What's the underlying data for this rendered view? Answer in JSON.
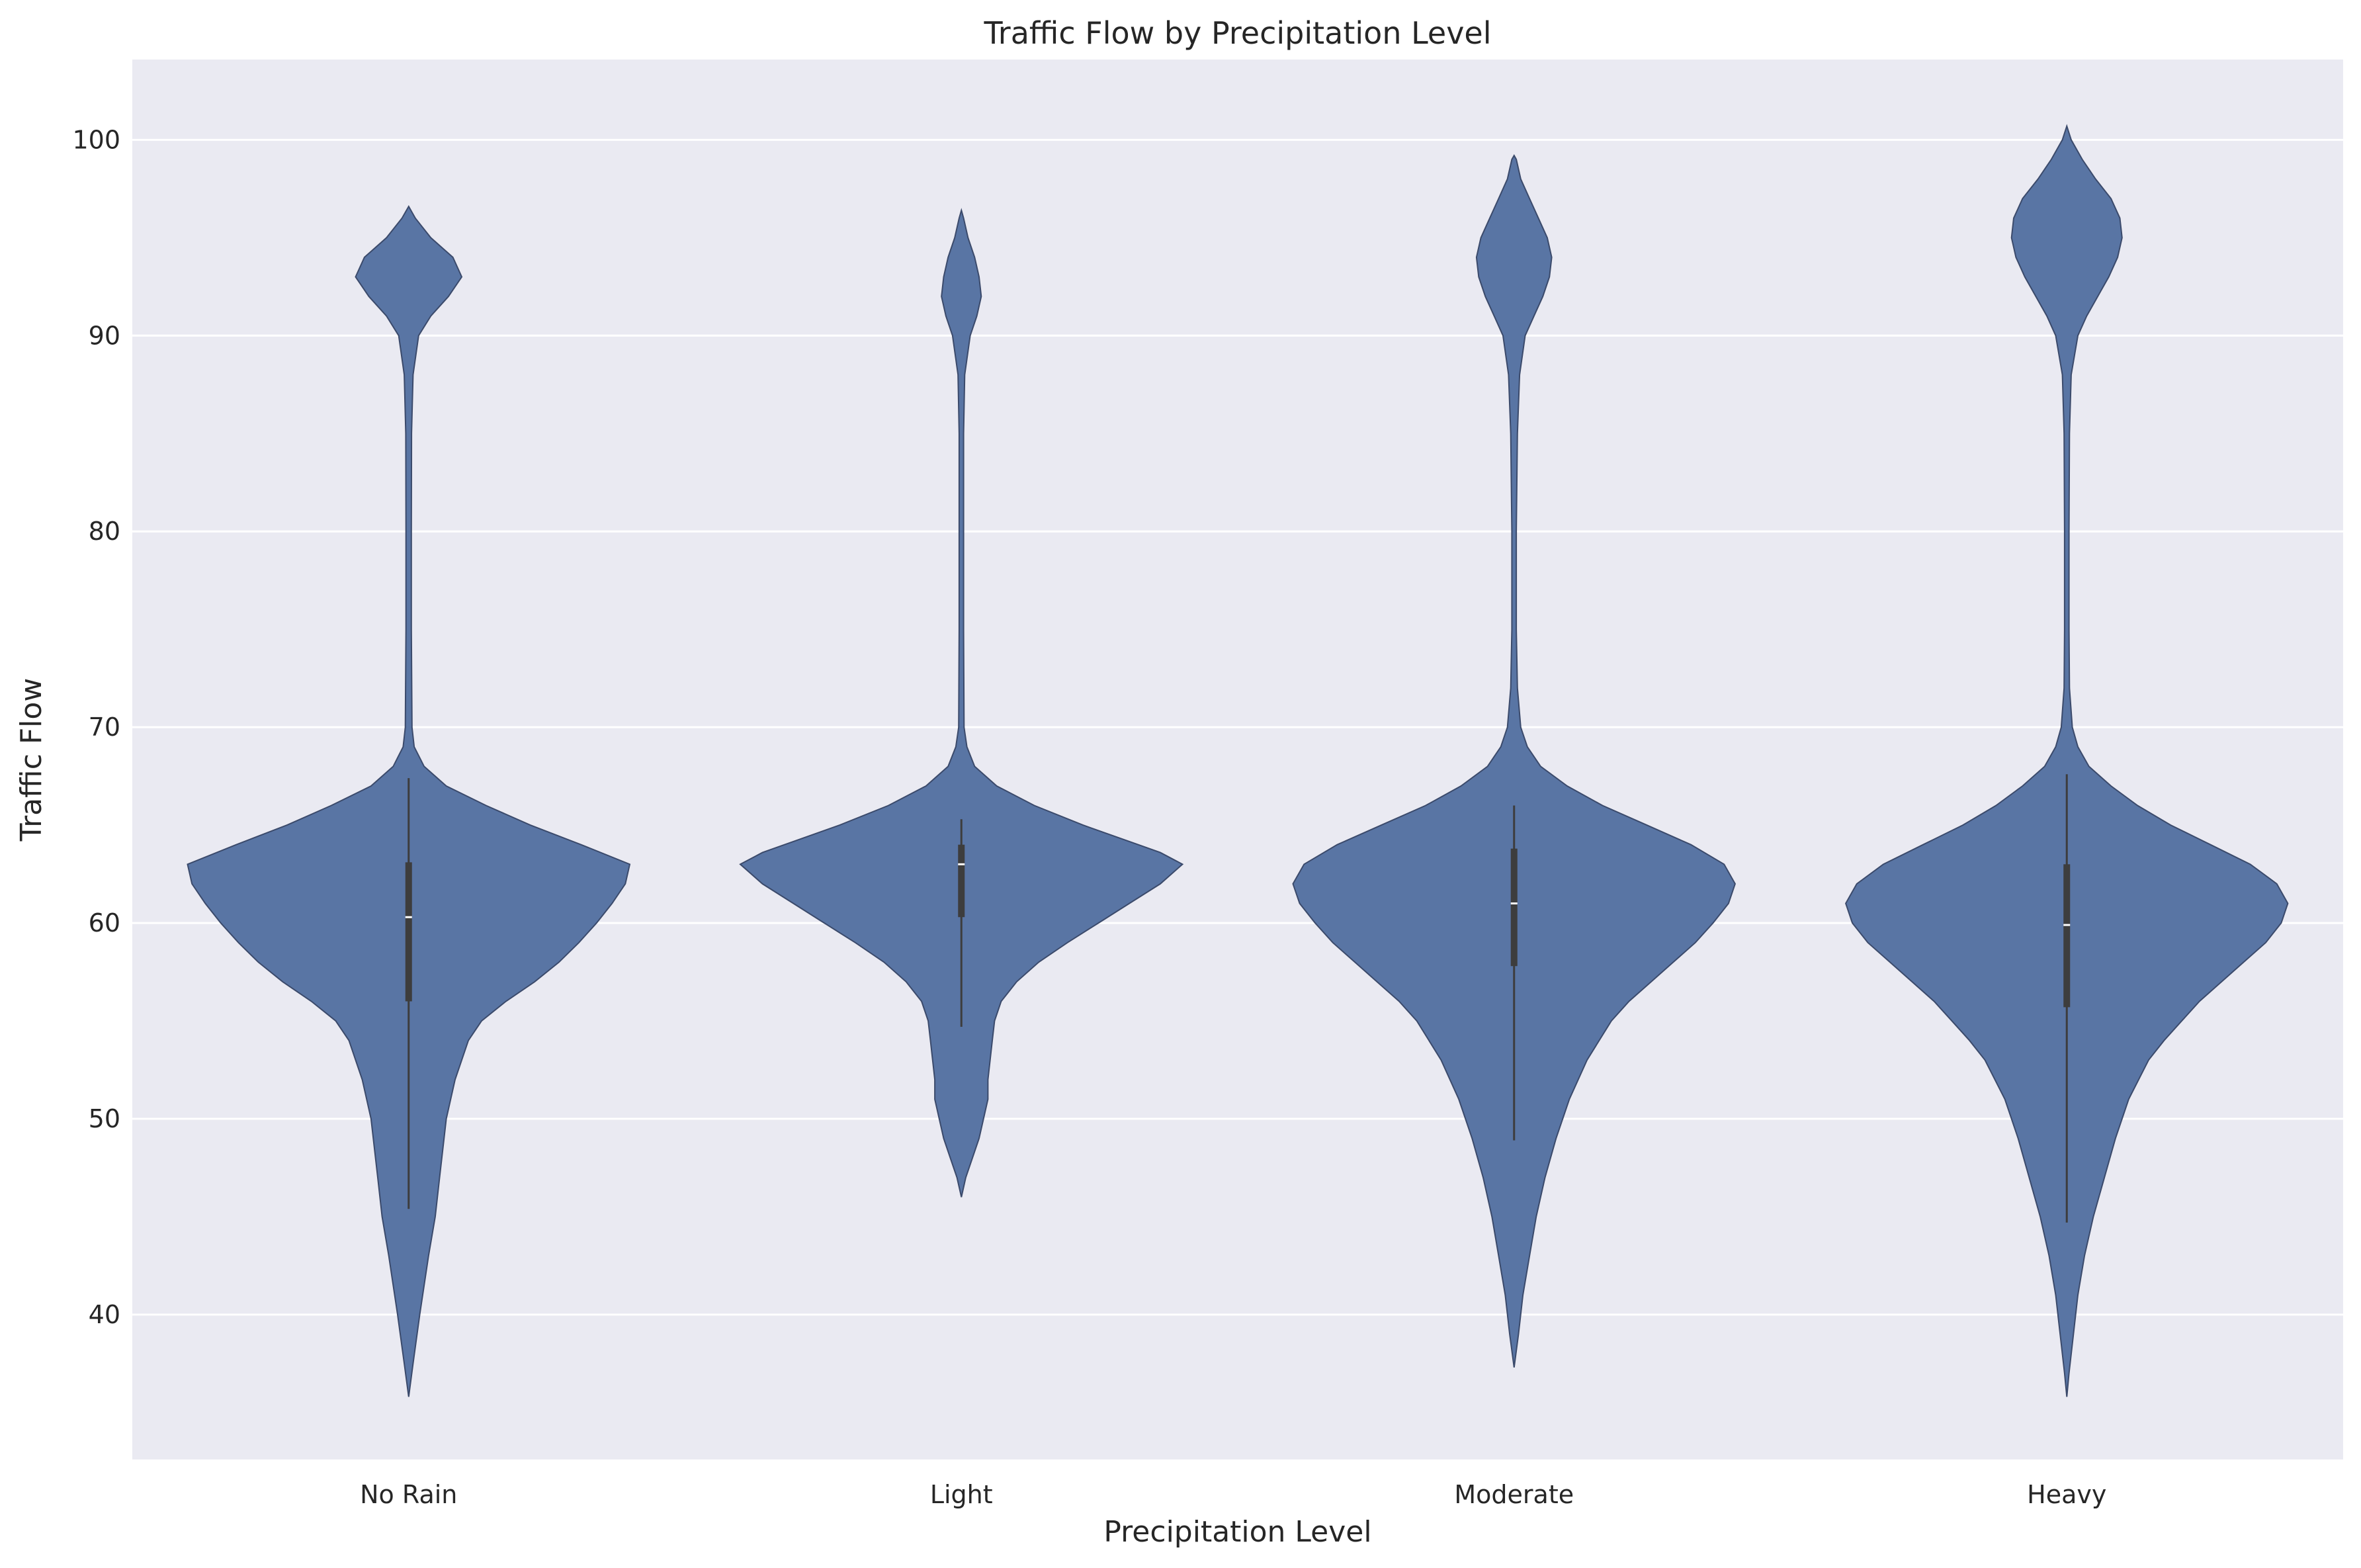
{
  "chart_data": {
    "type": "violin",
    "title": "Traffic Flow by Precipitation Level",
    "xlabel": "Precipitation Level",
    "ylabel": "Traffic Flow",
    "ylim": [
      32.6,
      104.1
    ],
    "yticks": [
      40,
      50,
      60,
      70,
      80,
      90,
      100
    ],
    "grid": true,
    "colors": {
      "violin": "#5975a4",
      "background": "#eaeaf2",
      "grid": "#ffffff",
      "box": "#3d3d3d"
    },
    "categories": [
      {
        "name": "No Rain",
        "min": 35.8,
        "max": 96.6,
        "q1": 56.0,
        "median": 60.3,
        "q3": 63.1,
        "whisker_low": 45.4,
        "whisker_high": 67.4,
        "profile": [
          [
            35.8,
            0
          ],
          [
            37.5,
            0.02
          ],
          [
            40,
            0.05
          ],
          [
            43,
            0.09
          ],
          [
            45,
            0.12
          ],
          [
            47,
            0.14
          ],
          [
            50,
            0.17
          ],
          [
            52,
            0.21
          ],
          [
            54,
            0.27
          ],
          [
            55,
            0.33
          ],
          [
            56,
            0.44
          ],
          [
            57,
            0.57
          ],
          [
            58,
            0.68
          ],
          [
            59,
            0.77
          ],
          [
            60,
            0.85
          ],
          [
            61,
            0.92
          ],
          [
            62,
            0.98
          ],
          [
            63,
            1.0
          ],
          [
            64,
            0.78
          ],
          [
            65,
            0.55
          ],
          [
            66,
            0.35
          ],
          [
            67,
            0.17
          ],
          [
            68,
            0.07
          ],
          [
            69,
            0.025
          ],
          [
            70,
            0.015
          ],
          [
            75,
            0.012
          ],
          [
            80,
            0.012
          ],
          [
            85,
            0.013
          ],
          [
            88,
            0.02
          ],
          [
            90,
            0.045
          ],
          [
            91,
            0.1
          ],
          [
            92,
            0.18
          ],
          [
            93,
            0.24
          ],
          [
            94,
            0.2
          ],
          [
            95,
            0.1
          ],
          [
            96,
            0.03
          ],
          [
            96.6,
            0
          ]
        ]
      },
      {
        "name": "Light",
        "min": 46.0,
        "max": 96.4,
        "q1": 60.3,
        "median": 63.0,
        "q3": 64.0,
        "whisker_low": 54.7,
        "whisker_high": 65.3,
        "profile": [
          [
            46,
            0
          ],
          [
            47,
            0.02
          ],
          [
            48,
            0.05
          ],
          [
            49,
            0.08
          ],
          [
            50,
            0.1
          ],
          [
            51,
            0.12
          ],
          [
            52,
            0.12
          ],
          [
            53,
            0.13
          ],
          [
            54,
            0.14
          ],
          [
            55,
            0.15
          ],
          [
            56,
            0.18
          ],
          [
            57,
            0.25
          ],
          [
            58,
            0.35
          ],
          [
            59,
            0.48
          ],
          [
            60,
            0.62
          ],
          [
            61,
            0.76
          ],
          [
            62,
            0.9
          ],
          [
            63,
            1.0
          ],
          [
            63.6,
            0.9
          ],
          [
            64,
            0.8
          ],
          [
            65,
            0.55
          ],
          [
            66,
            0.33
          ],
          [
            67,
            0.16
          ],
          [
            68,
            0.06
          ],
          [
            69,
            0.025
          ],
          [
            70,
            0.012
          ],
          [
            75,
            0.01
          ],
          [
            80,
            0.01
          ],
          [
            85,
            0.01
          ],
          [
            88,
            0.015
          ],
          [
            90,
            0.04
          ],
          [
            91,
            0.07
          ],
          [
            92,
            0.09
          ],
          [
            93,
            0.08
          ],
          [
            94,
            0.06
          ],
          [
            95,
            0.03
          ],
          [
            96,
            0.01
          ],
          [
            96.4,
            0
          ]
        ]
      },
      {
        "name": "Moderate",
        "min": 37.3,
        "max": 99.2,
        "q1": 57.8,
        "median": 61.0,
        "q3": 63.8,
        "whisker_low": 48.9,
        "whisker_high": 66.0,
        "profile": [
          [
            37.3,
            0
          ],
          [
            39,
            0.02
          ],
          [
            41,
            0.04
          ],
          [
            43,
            0.07
          ],
          [
            45,
            0.1
          ],
          [
            47,
            0.14
          ],
          [
            49,
            0.19
          ],
          [
            51,
            0.25
          ],
          [
            53,
            0.33
          ],
          [
            55,
            0.44
          ],
          [
            56,
            0.52
          ],
          [
            57,
            0.62
          ],
          [
            58,
            0.72
          ],
          [
            59,
            0.82
          ],
          [
            60,
            0.9
          ],
          [
            61,
            0.97
          ],
          [
            62,
            1.0
          ],
          [
            63,
            0.95
          ],
          [
            64,
            0.8
          ],
          [
            65,
            0.6
          ],
          [
            66,
            0.4
          ],
          [
            67,
            0.24
          ],
          [
            68,
            0.12
          ],
          [
            69,
            0.06
          ],
          [
            70,
            0.03
          ],
          [
            72,
            0.015
          ],
          [
            75,
            0.01
          ],
          [
            80,
            0.01
          ],
          [
            85,
            0.015
          ],
          [
            88,
            0.025
          ],
          [
            90,
            0.05
          ],
          [
            91,
            0.09
          ],
          [
            92,
            0.13
          ],
          [
            93,
            0.16
          ],
          [
            94,
            0.17
          ],
          [
            95,
            0.15
          ],
          [
            96,
            0.11
          ],
          [
            97,
            0.07
          ],
          [
            98,
            0.03
          ],
          [
            99,
            0.01
          ],
          [
            99.2,
            0
          ]
        ]
      },
      {
        "name": "Heavy",
        "min": 35.8,
        "max": 100.7,
        "q1": 55.7,
        "median": 59.9,
        "q3": 63.0,
        "whisker_low": 44.7,
        "whisker_high": 67.6,
        "profile": [
          [
            35.8,
            0
          ],
          [
            37,
            0.01
          ],
          [
            39,
            0.03
          ],
          [
            41,
            0.05
          ],
          [
            43,
            0.08
          ],
          [
            45,
            0.12
          ],
          [
            47,
            0.17
          ],
          [
            49,
            0.22
          ],
          [
            51,
            0.28
          ],
          [
            53,
            0.37
          ],
          [
            54,
            0.44
          ],
          [
            55,
            0.52
          ],
          [
            56,
            0.6
          ],
          [
            57,
            0.7
          ],
          [
            58,
            0.8
          ],
          [
            59,
            0.9
          ],
          [
            60,
            0.97
          ],
          [
            61,
            1.0
          ],
          [
            62,
            0.95
          ],
          [
            63,
            0.83
          ],
          [
            64,
            0.65
          ],
          [
            65,
            0.47
          ],
          [
            66,
            0.32
          ],
          [
            67,
            0.2
          ],
          [
            68,
            0.1
          ],
          [
            69,
            0.05
          ],
          [
            70,
            0.025
          ],
          [
            72,
            0.012
          ],
          [
            75,
            0.01
          ],
          [
            80,
            0.01
          ],
          [
            85,
            0.012
          ],
          [
            88,
            0.02
          ],
          [
            90,
            0.05
          ],
          [
            91,
            0.09
          ],
          [
            92,
            0.14
          ],
          [
            93,
            0.19
          ],
          [
            94,
            0.23
          ],
          [
            95,
            0.25
          ],
          [
            96,
            0.24
          ],
          [
            97,
            0.2
          ],
          [
            98,
            0.13
          ],
          [
            99,
            0.07
          ],
          [
            100,
            0.02
          ],
          [
            100.7,
            0
          ]
        ]
      }
    ]
  }
}
